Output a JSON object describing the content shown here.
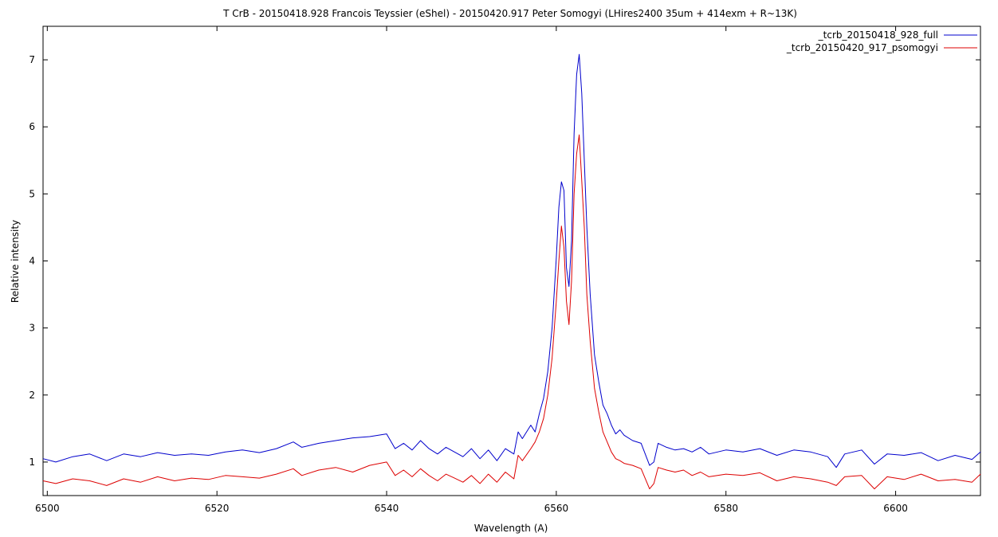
{
  "chart_data": {
    "type": "line",
    "title": "T CrB - 20150418.928 Francois Teyssier (eShel)  - 20150420.917 Peter Somogyi (LHires2400 35um + 414exm + R~13K)",
    "xlabel": "Wavelength (A)",
    "ylabel": "Relative intensity",
    "xlim": [
      6499.5,
      6610
    ],
    "ylim": [
      0.5,
      7.5
    ],
    "xticks": [
      6500,
      6520,
      6540,
      6560,
      6580,
      6600
    ],
    "yticks": [
      1,
      2,
      3,
      4,
      5,
      6,
      7
    ],
    "grid": false,
    "legend_position": "top-right",
    "series": [
      {
        "name": "_tcrb_20150418_928_full",
        "color": "#0000cc",
        "x": [
          6499.5,
          6501,
          6503,
          6505,
          6507,
          6509,
          6511,
          6513,
          6515,
          6517,
          6519,
          6521,
          6523,
          6525,
          6527,
          6529,
          6530,
          6532,
          6534,
          6536,
          6538,
          6540,
          6541,
          6542,
          6543,
          6544,
          6545,
          6546,
          6547,
          6548,
          6549,
          6550,
          6551,
          6552,
          6553,
          6554,
          6555,
          6555.5,
          6556,
          6557,
          6557.5,
          6558,
          6558.5,
          6559,
          6559.5,
          6560,
          6560.3,
          6560.6,
          6560.9,
          6561.2,
          6561.5,
          6561.8,
          6562.1,
          6562.4,
          6562.7,
          6563,
          6563.3,
          6563.6,
          6564,
          6564.5,
          6565,
          6565.5,
          6566,
          6566.5,
          6567,
          6567.5,
          6568,
          6569,
          6570,
          6571,
          6571.5,
          6572,
          6573,
          6574,
          6575,
          6576,
          6577,
          6578,
          6580,
          6582,
          6584,
          6586,
          6588,
          6590,
          6592,
          6593,
          6594,
          6596,
          6597.5,
          6599,
          6601,
          6603,
          6605,
          6607,
          6609,
          6610
        ],
        "y": [
          1.05,
          1.0,
          1.08,
          1.12,
          1.02,
          1.12,
          1.08,
          1.14,
          1.1,
          1.12,
          1.1,
          1.15,
          1.18,
          1.14,
          1.2,
          1.3,
          1.22,
          1.28,
          1.32,
          1.36,
          1.38,
          1.42,
          1.2,
          1.28,
          1.18,
          1.32,
          1.2,
          1.12,
          1.22,
          1.15,
          1.08,
          1.2,
          1.05,
          1.18,
          1.02,
          1.2,
          1.12,
          1.45,
          1.35,
          1.55,
          1.45,
          1.72,
          1.95,
          2.35,
          3.0,
          4.05,
          4.8,
          5.18,
          5.05,
          3.9,
          3.62,
          4.3,
          5.9,
          6.78,
          7.08,
          6.5,
          5.5,
          4.5,
          3.5,
          2.6,
          2.2,
          1.85,
          1.72,
          1.55,
          1.42,
          1.48,
          1.4,
          1.32,
          1.28,
          0.95,
          1.0,
          1.28,
          1.22,
          1.18,
          1.2,
          1.15,
          1.22,
          1.12,
          1.18,
          1.15,
          1.2,
          1.1,
          1.18,
          1.15,
          1.08,
          0.92,
          1.12,
          1.18,
          0.97,
          1.12,
          1.1,
          1.14,
          1.02,
          1.1,
          1.04,
          1.15
        ]
      },
      {
        "name": "_tcrb_20150420_917_psomogyi",
        "color": "#dd0000",
        "x": [
          6499.5,
          6501,
          6503,
          6505,
          6507,
          6509,
          6511,
          6513,
          6515,
          6517,
          6519,
          6521,
          6523,
          6525,
          6527,
          6529,
          6530,
          6532,
          6534,
          6536,
          6538,
          6540,
          6541,
          6542,
          6543,
          6544,
          6545,
          6546,
          6547,
          6548,
          6549,
          6550,
          6551,
          6552,
          6553,
          6554,
          6555,
          6555.5,
          6556,
          6557,
          6557.5,
          6558,
          6558.5,
          6559,
          6559.5,
          6560,
          6560.3,
          6560.6,
          6560.9,
          6561.2,
          6561.5,
          6561.8,
          6562.1,
          6562.4,
          6562.7,
          6563,
          6563.3,
          6563.6,
          6564,
          6564.5,
          6565,
          6565.5,
          6566,
          6566.5,
          6567,
          6567.5,
          6568,
          6569,
          6570,
          6571,
          6571.5,
          6572,
          6573,
          6574,
          6575,
          6576,
          6577,
          6578,
          6580,
          6582,
          6584,
          6586,
          6588,
          6590,
          6592,
          6593,
          6594,
          6596,
          6597.5,
          6599,
          6601,
          6603,
          6605,
          6607,
          6609,
          6610
        ],
        "y": [
          0.72,
          0.68,
          0.75,
          0.72,
          0.65,
          0.75,
          0.7,
          0.78,
          0.72,
          0.76,
          0.74,
          0.8,
          0.78,
          0.76,
          0.82,
          0.9,
          0.8,
          0.88,
          0.92,
          0.85,
          0.95,
          1.0,
          0.8,
          0.88,
          0.78,
          0.9,
          0.8,
          0.72,
          0.82,
          0.76,
          0.7,
          0.8,
          0.68,
          0.82,
          0.7,
          0.85,
          0.75,
          1.1,
          1.02,
          1.2,
          1.3,
          1.45,
          1.65,
          2.0,
          2.55,
          3.4,
          4.0,
          4.52,
          4.2,
          3.4,
          3.05,
          3.7,
          5.0,
          5.6,
          5.88,
          5.2,
          4.5,
          3.5,
          2.8,
          2.1,
          1.75,
          1.45,
          1.3,
          1.15,
          1.05,
          1.02,
          0.98,
          0.95,
          0.9,
          0.6,
          0.68,
          0.92,
          0.88,
          0.85,
          0.88,
          0.8,
          0.85,
          0.78,
          0.82,
          0.8,
          0.84,
          0.72,
          0.78,
          0.75,
          0.7,
          0.65,
          0.78,
          0.8,
          0.6,
          0.78,
          0.74,
          0.82,
          0.72,
          0.74,
          0.7,
          0.82
        ]
      }
    ]
  }
}
